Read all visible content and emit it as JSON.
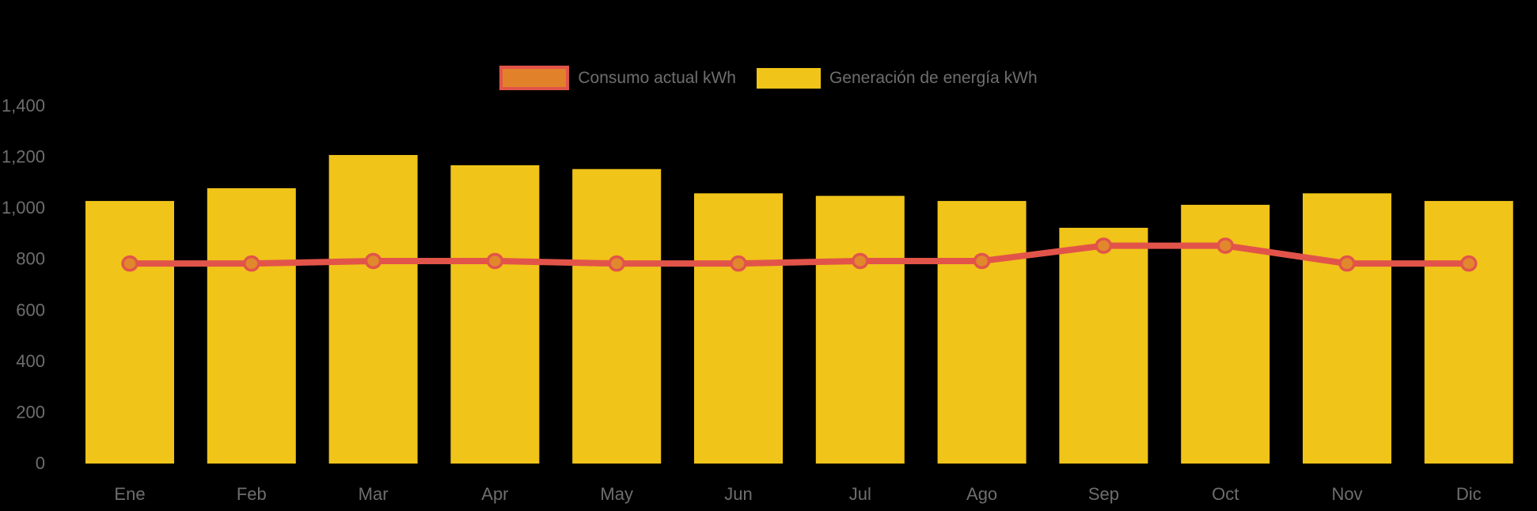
{
  "background_color": "#000000",
  "axis_text_color": "#6e6e6e",
  "legend": {
    "items": [
      {
        "id": "consumo",
        "label": "Consumo actual kWh",
        "swatch_fill": "#e1812a",
        "swatch_border": "#e2544a",
        "style": "line"
      },
      {
        "id": "generacion",
        "label": "Generación de energía kWh",
        "swatch_fill": "#f0c419",
        "swatch_border": "#f0c419",
        "style": "bar"
      }
    ]
  },
  "chart_data": {
    "type": "bar",
    "title": "",
    "xlabel": "",
    "ylabel": "",
    "categories": [
      "Ene",
      "Feb",
      "Mar",
      "Apr",
      "May",
      "Jun",
      "Jul",
      "Ago",
      "Sep",
      "Oct",
      "Nov",
      "Dic"
    ],
    "series": [
      {
        "name": "Consumo actual kWh",
        "type": "line",
        "color": "#e2544a",
        "marker_fill": "#e1882c",
        "values": [
          780,
          780,
          790,
          790,
          780,
          780,
          790,
          790,
          850,
          850,
          780,
          780
        ]
      },
      {
        "name": "Generación de energía kWh",
        "type": "bar",
        "color": "#f0c419",
        "values": [
          1025,
          1075,
          1205,
          1165,
          1150,
          1055,
          1045,
          1025,
          920,
          1010,
          1055,
          1025
        ]
      }
    ],
    "ylim": [
      0,
      1400
    ],
    "yticks": [
      0,
      200,
      400,
      600,
      800,
      1000,
      1200,
      1400
    ],
    "ytick_labels": [
      "0",
      "200",
      "400",
      "600",
      "800",
      "1,000",
      "1,200",
      "1,400"
    ],
    "grid": false,
    "legend_position": "top-center"
  }
}
